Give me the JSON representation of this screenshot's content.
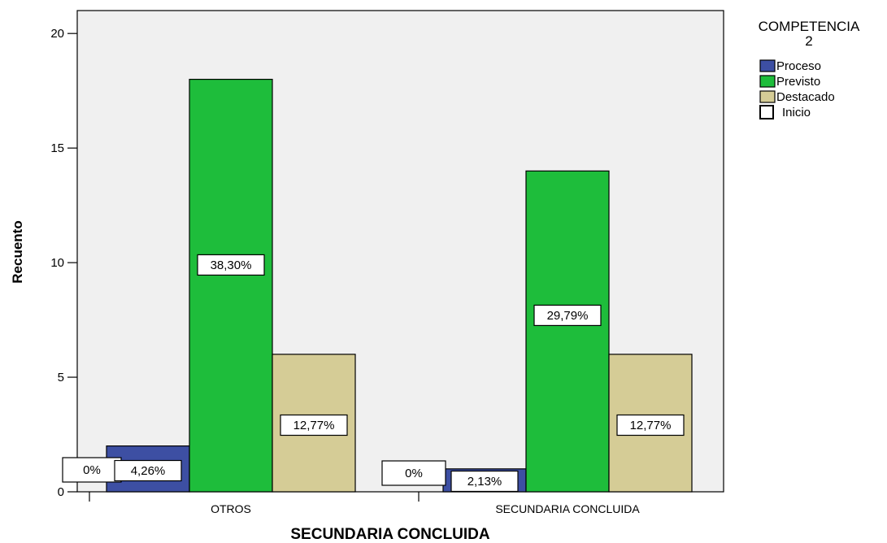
{
  "chart_data": {
    "type": "bar",
    "categories": [
      "OTROS",
      "SECUNDARIA CONCLUIDA"
    ],
    "xlabel": "SECUNDARIA CONCLUIDA",
    "ylabel": "Recuento",
    "ylim": [
      0,
      21
    ],
    "yticks": [
      "0",
      "5",
      "10",
      "15",
      "20"
    ],
    "grid": false,
    "legend": {
      "title_line1": "COMPETENCIA",
      "title_line2": "2",
      "placement": "right"
    },
    "series": [
      {
        "name": "Inicio",
        "color": "#ffffff",
        "values": [
          0,
          0
        ],
        "labels": [
          "0%",
          "0%"
        ]
      },
      {
        "name": "Proceso",
        "color": "#3d4fa3",
        "values": [
          2,
          1
        ],
        "labels": [
          "4,26%",
          "2,13%"
        ]
      },
      {
        "name": "Previsto",
        "color": "#1ebd3b",
        "values": [
          18,
          14
        ],
        "labels": [
          "38,30%",
          "29,79%"
        ]
      },
      {
        "name": "Destacado",
        "color": "#d5cc96",
        "values": [
          6,
          6
        ],
        "labels": [
          "12,77%",
          "12,77%"
        ]
      }
    ],
    "legend_order": [
      "Proceso",
      "Previsto",
      "Destacado",
      "Inicio"
    ],
    "plot_background": "#f0f0f0"
  }
}
